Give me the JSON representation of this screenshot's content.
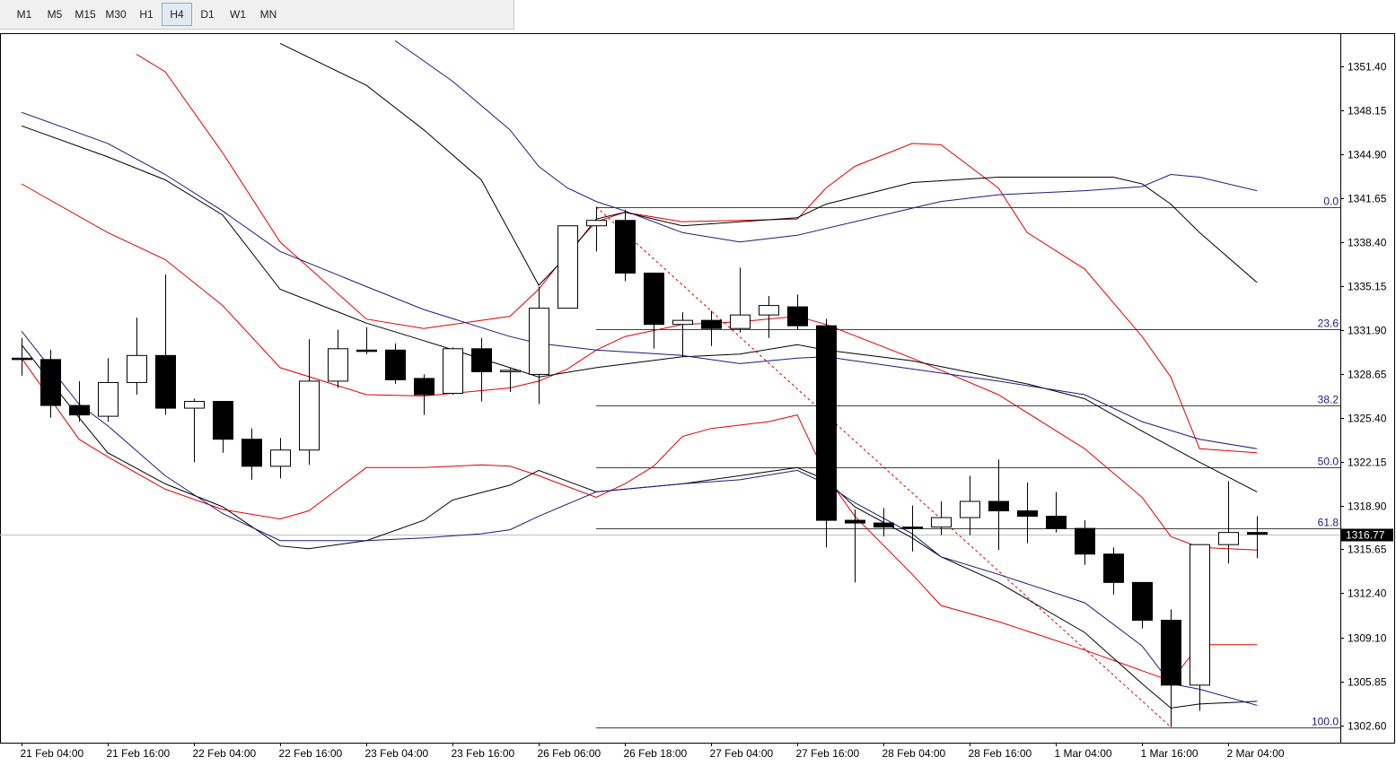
{
  "toolbar": {
    "buttons": [
      "M1",
      "M5",
      "M15",
      "M30",
      "H1",
      "H4",
      "D1",
      "W1",
      "MN"
    ],
    "selected": "H4"
  },
  "chart_data": {
    "type": "candlestick",
    "categories": [
      "21 Feb 04:00",
      null,
      null,
      "21 Feb 16:00",
      null,
      null,
      "22 Feb 04:00",
      null,
      null,
      "22 Feb 16:00",
      null,
      null,
      "23 Feb 04:00",
      null,
      null,
      "23 Feb 16:00",
      null,
      null,
      "26 Feb 06:00",
      null,
      null,
      "26 Feb 18:00",
      null,
      null,
      "27 Feb 04:00",
      null,
      null,
      "27 Feb 16:00",
      null,
      null,
      "28 Feb 04:00",
      null,
      null,
      "28 Feb 16:00",
      null,
      null,
      "1 Mar 04:00",
      null,
      null,
      "1 Mar 16:00",
      null,
      null,
      "2 Mar 04:00",
      null
    ],
    "open": [
      1329.8,
      1329.7,
      1326.3,
      1325.5,
      1328.0,
      1330.0,
      1326.1,
      1326.6,
      1323.8,
      1321.8,
      1323.0,
      1328.1,
      1330.4,
      1330.4,
      1328.3,
      1327.2,
      1330.5,
      1328.8,
      1328.6,
      1333.5,
      1339.6,
      1340.0,
      1336.1,
      1332.3,
      1332.6,
      1332.0,
      1333.0,
      1333.6,
      1332.2,
      1317.8,
      1317.6,
      1317.3,
      1317.3,
      1318.0,
      1319.2,
      1318.5,
      1318.1,
      1317.2,
      1315.3,
      1313.2,
      1310.4,
      1305.6,
      1316.0,
      1316.9
    ],
    "high": [
      1331.3,
      1330.4,
      1328.1,
      1329.8,
      1332.8,
      1336.0,
      1326.8,
      1326.6,
      1324.6,
      1323.9,
      1331.2,
      1331.9,
      1332.1,
      1330.9,
      1328.6,
      1330.6,
      1331.3,
      1329.1,
      1335.1,
      1339.6,
      1341.0,
      1340.8,
      1336.1,
      1333.2,
      1333.3,
      1336.5,
      1334.4,
      1334.5,
      1332.7,
      1318.6,
      1318.7,
      1318.9,
      1319.2,
      1321.1,
      1322.3,
      1320.6,
      1319.9,
      1317.8,
      1315.8,
      1313.2,
      1311.2,
      1316.0,
      1320.7,
      1318.1
    ],
    "low": [
      1328.5,
      1325.4,
      1325.1,
      1325.1,
      1327.1,
      1325.6,
      1322.1,
      1322.8,
      1320.8,
      1320.9,
      1321.9,
      1327.6,
      1330.1,
      1327.9,
      1325.6,
      1327.1,
      1326.6,
      1327.3,
      1326.4,
      1333.5,
      1337.7,
      1335.5,
      1330.5,
      1329.9,
      1330.7,
      1331.7,
      1331.3,
      1331.9,
      1315.8,
      1313.2,
      1316.6,
      1315.5,
      1316.7,
      1316.7,
      1315.6,
      1316.1,
      1316.9,
      1314.5,
      1312.3,
      1309.8,
      1302.5,
      1303.7,
      1314.6,
      1315.0
    ],
    "close": [
      1329.7,
      1326.3,
      1325.6,
      1328.0,
      1330.0,
      1326.1,
      1326.6,
      1323.8,
      1321.8,
      1323.0,
      1328.1,
      1330.5,
      1330.3,
      1328.2,
      1327.1,
      1330.5,
      1328.8,
      1328.9,
      1333.5,
      1339.6,
      1340.0,
      1336.1,
      1332.3,
      1332.6,
      1332.0,
      1333.0,
      1333.7,
      1332.2,
      1317.8,
      1317.6,
      1317.3,
      1317.2,
      1318.0,
      1319.2,
      1318.5,
      1318.1,
      1317.2,
      1315.3,
      1313.2,
      1310.4,
      1305.6,
      1316.0,
      1316.9,
      1316.77
    ],
    "up_color": "#ffffff",
    "down_color": "#000000",
    "xlim": [
      -0.75,
      45.9
    ],
    "ylim": [
      1301.34,
      1353.79
    ],
    "yticks": [
      {
        "value": 1351.4,
        "label": "1351.40"
      },
      1348.15,
      {
        "value": 1344.9,
        "label": "1344.90"
      },
      1341.65,
      {
        "value": 1338.4,
        "label": "1338.40"
      },
      1335.15,
      {
        "value": 1331.9,
        "label": "1331.90"
      },
      1328.65,
      {
        "value": 1325.4,
        "label": "1325.40"
      },
      1322.15,
      {
        "value": 1318.9,
        "label": "1318.90"
      },
      1315.65,
      {
        "value": 1312.4,
        "label": "1312.40"
      },
      {
        "value": 1309.1,
        "label": "1309.10"
      },
      1305.85,
      {
        "value": 1302.6,
        "label": "1302.60"
      }
    ],
    "last_price": 1316.77,
    "overlays": [
      {
        "color": "#e00000",
        "x": [
          4,
          5,
          7,
          9,
          12,
          14,
          17,
          18,
          19,
          20,
          21,
          23,
          27,
          28,
          29,
          31,
          32,
          34,
          35,
          37,
          39,
          40,
          41,
          43
        ],
        "values": [
          1352.3,
          1351.0,
          1345.0,
          1338.4,
          1332.7,
          1332.0,
          1332.9,
          1334.9,
          1337.6,
          1339.9,
          1340.6,
          1339.9,
          1340.1,
          1342.4,
          1344.0,
          1345.7,
          1345.6,
          1342.4,
          1339.1,
          1336.4,
          1331.4,
          1328.4,
          1323.1,
          1322.8
        ]
      },
      {
        "color": "#e00000",
        "x": [
          0,
          3,
          5,
          7,
          9,
          12,
          14,
          17,
          18,
          19,
          20,
          21,
          23,
          25,
          27,
          28,
          31,
          34,
          37,
          39,
          40,
          41,
          43
        ],
        "values": [
          1342.7,
          1339.1,
          1337.1,
          1333.7,
          1329.1,
          1327.1,
          1327.0,
          1327.6,
          1328.1,
          1329.0,
          1330.4,
          1331.4,
          1332.3,
          1332.5,
          1332.9,
          1332.3,
          1329.8,
          1327.1,
          1323.1,
          1319.5,
          1316.6,
          1315.8,
          1315.6
        ]
      },
      {
        "color": "#e00000",
        "x": [
          0,
          2,
          3,
          5,
          7,
          9,
          10,
          12,
          14,
          16,
          17,
          18,
          20,
          21,
          22,
          23,
          24,
          26,
          27,
          28,
          29,
          31,
          32,
          34,
          37,
          40,
          41,
          43
        ],
        "values": [
          1329.8,
          1323.8,
          1322.5,
          1320.1,
          1318.6,
          1317.9,
          1318.5,
          1321.7,
          1321.7,
          1321.9,
          1321.8,
          1321.1,
          1319.5,
          1320.5,
          1321.8,
          1324.0,
          1324.6,
          1325.1,
          1325.6,
          1321.1,
          1318.1,
          1313.8,
          1311.5,
          1310.3,
          1308.2,
          1305.9,
          1308.6,
          1308.6
        ]
      },
      {
        "color": "#000000",
        "x": [
          9,
          12,
          14,
          16,
          17,
          18,
          19,
          20,
          21,
          23,
          27,
          28,
          31,
          34,
          38,
          39,
          40,
          41,
          43
        ],
        "values": [
          1353.1,
          1350.0,
          1346.7,
          1343.0,
          1339.1,
          1335.2,
          1337.4,
          1340.1,
          1340.6,
          1339.6,
          1340.2,
          1341.2,
          1342.8,
          1343.2,
          1343.2,
          1342.7,
          1341.2,
          1339.1,
          1335.4
        ]
      },
      {
        "color": "#000000",
        "x": [
          0,
          3,
          5,
          7,
          9,
          12,
          14,
          17,
          18,
          20,
          23,
          25,
          27,
          28,
          31,
          35,
          37,
          39,
          41,
          43
        ],
        "values": [
          1347.0,
          1344.7,
          1343.0,
          1340.4,
          1334.9,
          1332.4,
          1331.1,
          1329.1,
          1328.4,
          1329.1,
          1329.9,
          1330.1,
          1330.8,
          1330.4,
          1329.6,
          1327.9,
          1326.8,
          1324.4,
          1322.1,
          1319.9
        ]
      },
      {
        "color": "#000000",
        "x": [
          0,
          2,
          3,
          5,
          7,
          9,
          10,
          12,
          14,
          15,
          17,
          18,
          20,
          23,
          27,
          28,
          29,
          31,
          32,
          34,
          37,
          39,
          40,
          41,
          43
        ],
        "values": [
          1330.8,
          1325.4,
          1322.8,
          1320.5,
          1318.8,
          1315.9,
          1315.7,
          1316.3,
          1317.8,
          1319.3,
          1320.4,
          1321.5,
          1319.9,
          1320.5,
          1321.7,
          1320.8,
          1318.8,
          1316.5,
          1315.1,
          1313.2,
          1309.5,
          1305.7,
          1303.9,
          1304.2,
          1304.4
        ]
      },
      {
        "color": "#1a1a80",
        "x": [
          13,
          15,
          17,
          18,
          19,
          20,
          21,
          23,
          25,
          27,
          28,
          31,
          32,
          34,
          37,
          39,
          40,
          41,
          43
        ],
        "values": [
          1353.3,
          1350.3,
          1346.7,
          1344.0,
          1342.4,
          1341.4,
          1340.7,
          1339.1,
          1338.4,
          1338.9,
          1339.4,
          1340.9,
          1341.4,
          1341.9,
          1342.2,
          1342.5,
          1343.4,
          1343.2,
          1342.2
        ]
      },
      {
        "color": "#1a1a80",
        "x": [
          0,
          3,
          5,
          7,
          9,
          12,
          14,
          17,
          18,
          20,
          23,
          25,
          27,
          28,
          31,
          34,
          37,
          39,
          41,
          43
        ],
        "values": [
          1348.0,
          1345.7,
          1343.4,
          1340.7,
          1337.7,
          1335.1,
          1333.4,
          1331.4,
          1330.9,
          1330.4,
          1330.0,
          1329.4,
          1329.8,
          1329.9,
          1329.0,
          1328.1,
          1327.1,
          1325.1,
          1323.8,
          1323.1
        ]
      },
      {
        "color": "#1a1a80",
        "x": [
          0,
          2,
          3,
          5,
          7,
          9,
          12,
          14,
          16,
          17,
          18,
          20,
          23,
          25,
          27,
          28,
          29,
          31,
          32,
          34,
          37,
          39,
          40,
          41,
          43
        ],
        "values": [
          1331.8,
          1326.4,
          1324.8,
          1321.1,
          1318.3,
          1316.3,
          1316.3,
          1316.5,
          1316.8,
          1317.1,
          1318.1,
          1319.9,
          1320.5,
          1320.8,
          1321.5,
          1320.5,
          1319.1,
          1316.8,
          1315.1,
          1313.8,
          1311.7,
          1308.5,
          1305.7,
          1305.3,
          1304.1
        ]
      }
    ],
    "fibonacci": {
      "from_x": 20,
      "to_x": 40,
      "high": 1341.0,
      "low": 1302.5,
      "levels": [
        {
          "value": 0,
          "label": "0.0"
        },
        23.6,
        38.2,
        {
          "value": 50,
          "label": "50.0"
        },
        61.8,
        {
          "value": 100,
          "label": "100.0"
        }
      ],
      "line_color": "#000000",
      "label_color": "#1a1a80",
      "trend_color": "#e00000"
    }
  }
}
